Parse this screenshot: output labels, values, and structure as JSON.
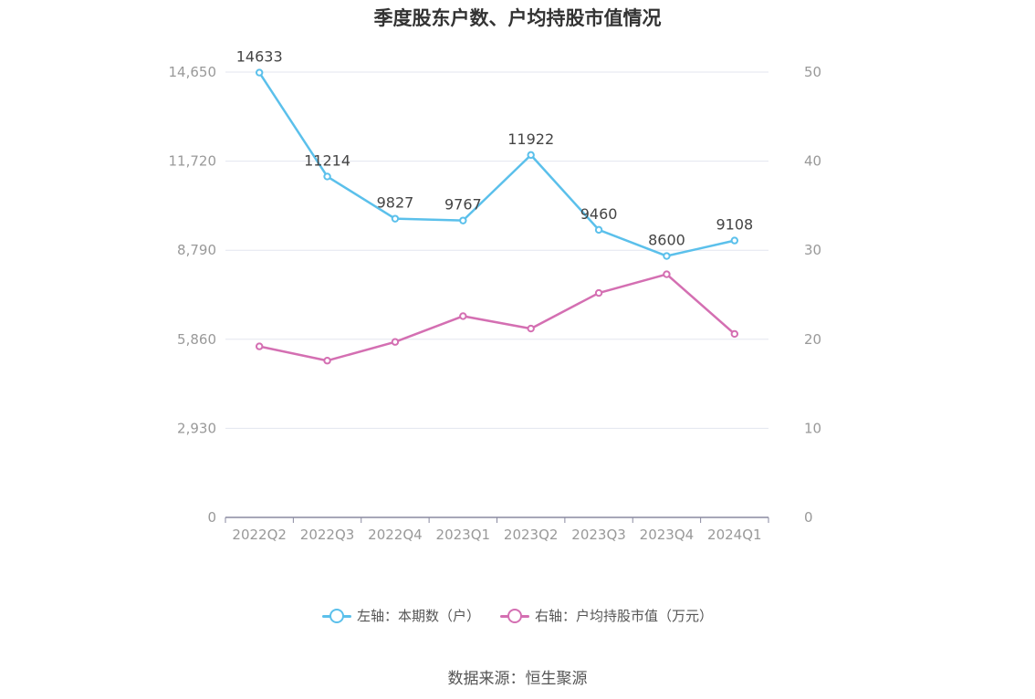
{
  "title": "季度股东户数、户均持股市值情况",
  "source": "数据来源：恒生聚源",
  "legend": [
    {
      "label": "左轴：本期数（户）",
      "color": "#5bc0eb"
    },
    {
      "label": "右轴：户均持股市值（万元）",
      "color": "#d46fb2"
    }
  ],
  "chart_data": {
    "type": "line",
    "categories": [
      "2022Q2",
      "2022Q3",
      "2022Q4",
      "2023Q1",
      "2023Q2",
      "2023Q3",
      "2023Q4",
      "2024Q1"
    ],
    "left_axis": {
      "ticks": [
        0,
        2930,
        5860,
        8790,
        11720,
        14650
      ],
      "tick_labels": [
        "0",
        "2,930",
        "5,860",
        "8,790",
        "11,720",
        "14,650"
      ],
      "ylim": [
        0,
        14650
      ]
    },
    "right_axis": {
      "ticks": [
        0,
        10,
        20,
        30,
        40,
        50
      ],
      "tick_labels": [
        "0",
        "10",
        "20",
        "30",
        "40",
        "50"
      ],
      "ylim": [
        0,
        50
      ]
    },
    "series": [
      {
        "name": "左轴：本期数（户）",
        "axis": "left",
        "color": "#5bc0eb",
        "values": [
          14633,
          11214,
          9827,
          9767,
          11922,
          9460,
          8600,
          9108
        ],
        "show_labels": true
      },
      {
        "name": "右轴：户均持股市值（万元）",
        "axis": "right",
        "color": "#d46fb2",
        "values": [
          19.2,
          17.6,
          19.7,
          22.6,
          21.2,
          25.2,
          27.3,
          20.6
        ],
        "show_labels": false
      }
    ],
    "grid": true
  }
}
